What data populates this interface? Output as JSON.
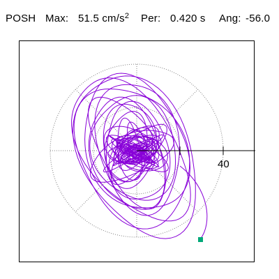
{
  "header": {
    "station": "POSH",
    "max_label": "Max:",
    "max_value": "51.5 cm/s",
    "max_unit_exponent": "2",
    "period_label": "Per:",
    "period_value": "0.420 s",
    "angle_label": "Ang:",
    "angle_value": "-56.0"
  },
  "plot": {
    "radial_tick_label": "40",
    "colors": {
      "trace": "#8800d8",
      "grid": "#808080",
      "axis": "#000000",
      "marker": "#00a878"
    },
    "grid_style": "dotted",
    "axis_direction": "east"
  }
}
